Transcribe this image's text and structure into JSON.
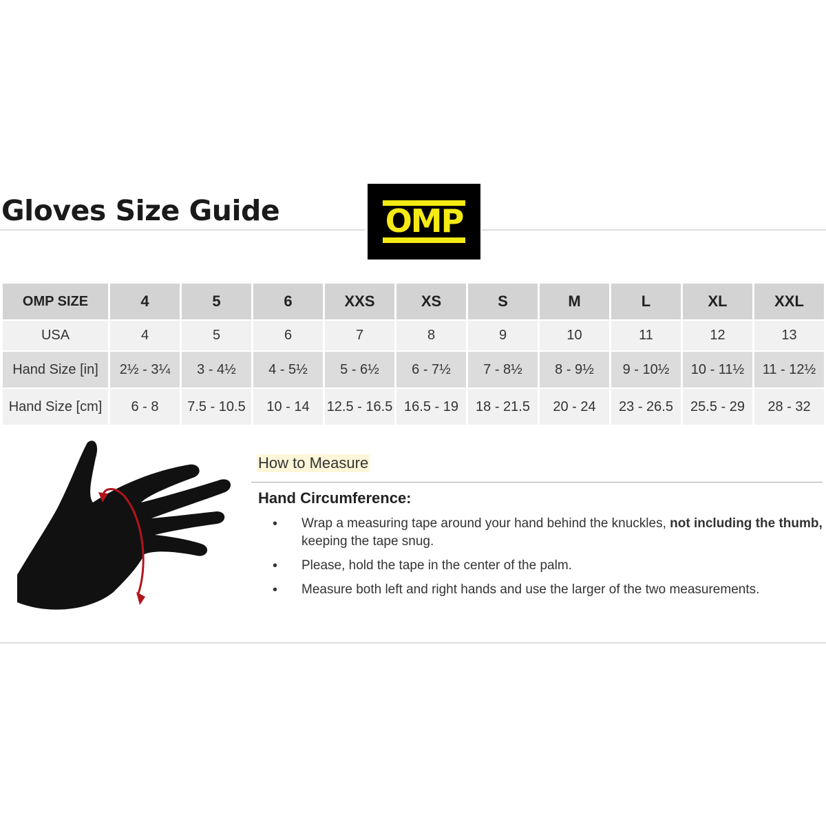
{
  "title": "Gloves Size Guide",
  "logo": {
    "text": "OMP",
    "colors": {
      "background": "#000000",
      "foreground": "#f5ea14"
    }
  },
  "table": {
    "header": [
      "OMP SIZE",
      "4",
      "5",
      "6",
      "XXS",
      "XS",
      "S",
      "M",
      "L",
      "XL",
      "XXL"
    ],
    "rows": [
      [
        "USA",
        "4",
        "5",
        "6",
        "7",
        "8",
        "9",
        "10",
        "11",
        "12",
        "13"
      ],
      [
        "Hand Size [in]",
        "2½ - 3¼",
        "3 - 4½",
        "4 - 5½",
        "5 - 6½",
        "6 - 7½",
        "7 - 8½",
        "8 - 9½",
        "9 - 10½",
        "10 - 11½",
        "11 - 12½"
      ],
      [
        "Hand Size [cm]",
        "6 - 8",
        "7.5 - 10.5",
        "10 - 14",
        "12.5 - 16.5",
        "16.5 - 19",
        "18 - 21.5",
        "20 - 24",
        "23 - 26.5",
        "25.5 - 29",
        "28 - 32"
      ]
    ]
  },
  "how_to": {
    "heading": "How to Measure",
    "subheading": "Hand Circumference:",
    "bullets": [
      {
        "text": "Wrap a measuring tape around your hand behind the knuckles, ",
        "bold": "not including the thumb,",
        "rest": " keeping the tape snug."
      },
      {
        "text": "Please, hold the tape in the center of the palm."
      },
      {
        "text": "Measure both left and right hands and use the larger of the two measurements."
      }
    ]
  }
}
